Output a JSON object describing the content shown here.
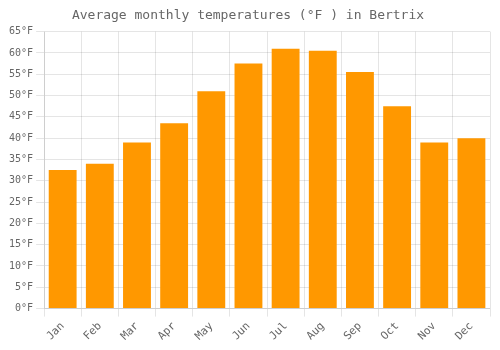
{
  "chart_data": {
    "type": "bar",
    "title": "Average monthly temperatures (°F ) in Bertrix",
    "categories": [
      "Jan",
      "Feb",
      "Mar",
      "Apr",
      "May",
      "Jun",
      "Jul",
      "Aug",
      "Sep",
      "Oct",
      "Nov",
      "Dec"
    ],
    "values": [
      32.5,
      34.0,
      39.0,
      43.5,
      51.0,
      57.5,
      61.0,
      60.5,
      55.5,
      47.5,
      39.0,
      40.0
    ],
    "color": "#FF9800",
    "ylim": [
      0,
      65
    ],
    "yticks": [
      {
        "value": 0,
        "label": "0°F"
      },
      {
        "value": 5,
        "label": "5°F"
      },
      {
        "value": 10,
        "label": "10°F"
      },
      {
        "value": 15,
        "label": "15°F"
      },
      {
        "value": 20,
        "label": "20°F"
      },
      {
        "value": 25,
        "label": "25°F"
      },
      {
        "value": 30,
        "label": "30°F"
      },
      {
        "value": 35,
        "label": "35°F"
      },
      {
        "value": 40,
        "label": "40°F"
      },
      {
        "value": 45,
        "label": "45°F"
      },
      {
        "value": 50,
        "label": "50°F"
      },
      {
        "value": 55,
        "label": "55°F"
      },
      {
        "value": 60,
        "label": "60°F"
      },
      {
        "value": 65,
        "label": "65°F"
      }
    ],
    "grid": true
  }
}
